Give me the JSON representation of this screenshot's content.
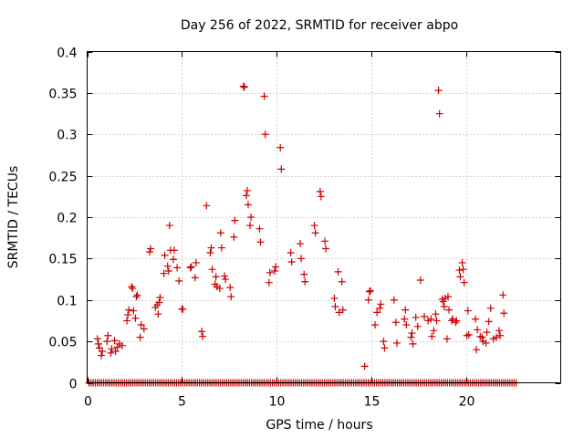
{
  "chart_data": {
    "type": "scatter",
    "title": "Day 256 of 2022, SRMTID for receiver abpo",
    "xlabel": "GPS time / hours",
    "ylabel": "SRMTID / TECUs",
    "xlim": [
      0,
      25
    ],
    "ylim": [
      0,
      0.4
    ],
    "xticks": [
      0,
      5,
      10,
      15,
      20
    ],
    "xtick_labels": [
      "0",
      "5",
      "10",
      "15",
      "20"
    ],
    "yticks": [
      0,
      0.05,
      0.1,
      0.15,
      0.2,
      0.25,
      0.3,
      0.35,
      0.4
    ],
    "ytick_labels": [
      "0",
      "0.05",
      "0.1",
      "0.15",
      "0.2",
      "0.25",
      "0.3",
      "0.35",
      "0.4"
    ],
    "grid": true,
    "marker": "+",
    "color": "#cc0000",
    "zero_series": {
      "x_start": 0.1,
      "x_end": 22.7,
      "x_step": 0.11,
      "y": 0
    },
    "series": [
      {
        "name": "SRMTID",
        "points": [
          [
            0.55,
            0.053
          ],
          [
            0.6,
            0.047
          ],
          [
            0.65,
            0.042
          ],
          [
            0.75,
            0.033
          ],
          [
            0.8,
            0.038
          ],
          [
            1.05,
            0.05
          ],
          [
            1.1,
            0.057
          ],
          [
            1.25,
            0.036
          ],
          [
            1.3,
            0.041
          ],
          [
            1.45,
            0.051
          ],
          [
            1.5,
            0.038
          ],
          [
            1.6,
            0.043
          ],
          [
            1.7,
            0.047
          ],
          [
            1.85,
            0.045
          ],
          [
            2.1,
            0.075
          ],
          [
            2.15,
            0.082
          ],
          [
            2.2,
            0.088
          ],
          [
            2.35,
            0.116
          ],
          [
            2.4,
            0.114
          ],
          [
            2.45,
            0.087
          ],
          [
            2.55,
            0.078
          ],
          [
            2.6,
            0.104
          ],
          [
            2.65,
            0.106
          ],
          [
            2.8,
            0.055
          ],
          [
            2.85,
            0.07
          ],
          [
            3.0,
            0.065
          ],
          [
            3.3,
            0.158
          ],
          [
            3.35,
            0.162
          ],
          [
            3.6,
            0.091
          ],
          [
            3.7,
            0.094
          ],
          [
            3.75,
            0.083
          ],
          [
            3.8,
            0.097
          ],
          [
            3.85,
            0.103
          ],
          [
            4.05,
            0.132
          ],
          [
            4.1,
            0.154
          ],
          [
            4.25,
            0.141
          ],
          [
            4.3,
            0.135
          ],
          [
            4.35,
            0.19
          ],
          [
            4.4,
            0.16
          ],
          [
            4.55,
            0.149
          ],
          [
            4.6,
            0.16
          ],
          [
            4.75,
            0.139
          ],
          [
            4.85,
            0.123
          ],
          [
            5.0,
            0.089
          ],
          [
            5.05,
            0.089
          ],
          [
            5.45,
            0.139
          ],
          [
            5.5,
            0.14
          ],
          [
            5.7,
            0.127
          ],
          [
            5.75,
            0.145
          ],
          [
            6.05,
            0.062
          ],
          [
            6.1,
            0.056
          ],
          [
            6.3,
            0.214
          ],
          [
            6.5,
            0.157
          ],
          [
            6.55,
            0.163
          ],
          [
            6.6,
            0.137
          ],
          [
            6.75,
            0.119
          ],
          [
            6.8,
            0.128
          ],
          [
            6.85,
            0.116
          ],
          [
            7.0,
            0.114
          ],
          [
            7.05,
            0.181
          ],
          [
            7.1,
            0.163
          ],
          [
            7.25,
            0.129
          ],
          [
            7.3,
            0.125
          ],
          [
            7.55,
            0.115
          ],
          [
            7.6,
            0.104
          ],
          [
            7.75,
            0.176
          ],
          [
            7.8,
            0.196
          ],
          [
            8.25,
            0.358
          ],
          [
            8.3,
            0.357
          ],
          [
            8.4,
            0.226
          ],
          [
            8.45,
            0.232
          ],
          [
            8.5,
            0.215
          ],
          [
            8.6,
            0.19
          ],
          [
            8.65,
            0.2
          ],
          [
            9.1,
            0.186
          ],
          [
            9.15,
            0.17
          ],
          [
            9.35,
            0.346
          ],
          [
            9.4,
            0.3
          ],
          [
            9.6,
            0.121
          ],
          [
            9.65,
            0.133
          ],
          [
            9.9,
            0.135
          ],
          [
            9.95,
            0.14
          ],
          [
            10.2,
            0.284
          ],
          [
            10.25,
            0.258
          ],
          [
            10.75,
            0.157
          ],
          [
            10.8,
            0.146
          ],
          [
            11.25,
            0.168
          ],
          [
            11.3,
            0.15
          ],
          [
            11.45,
            0.131
          ],
          [
            11.5,
            0.122
          ],
          [
            12.0,
            0.19
          ],
          [
            12.05,
            0.181
          ],
          [
            12.3,
            0.231
          ],
          [
            12.35,
            0.225
          ],
          [
            12.55,
            0.171
          ],
          [
            12.6,
            0.162
          ],
          [
            13.05,
            0.102
          ],
          [
            13.1,
            0.092
          ],
          [
            13.25,
            0.134
          ],
          [
            13.3,
            0.085
          ],
          [
            13.45,
            0.122
          ],
          [
            13.5,
            0.088
          ],
          [
            14.65,
            0.02
          ],
          [
            14.85,
            0.1
          ],
          [
            14.9,
            0.11
          ],
          [
            14.95,
            0.111
          ],
          [
            15.2,
            0.07
          ],
          [
            15.3,
            0.085
          ],
          [
            15.45,
            0.09
          ],
          [
            15.5,
            0.095
          ],
          [
            15.65,
            0.05
          ],
          [
            15.7,
            0.042
          ],
          [
            16.2,
            0.1
          ],
          [
            16.3,
            0.073
          ],
          [
            16.35,
            0.048
          ],
          [
            16.75,
            0.077
          ],
          [
            16.8,
            0.088
          ],
          [
            16.85,
            0.07
          ],
          [
            17.1,
            0.055
          ],
          [
            17.15,
            0.06
          ],
          [
            17.2,
            0.047
          ],
          [
            17.35,
            0.079
          ],
          [
            17.45,
            0.068
          ],
          [
            17.6,
            0.124
          ],
          [
            17.8,
            0.08
          ],
          [
            18.0,
            0.075
          ],
          [
            18.15,
            0.077
          ],
          [
            18.2,
            0.056
          ],
          [
            18.3,
            0.063
          ],
          [
            18.4,
            0.083
          ],
          [
            18.45,
            0.075
          ],
          [
            18.55,
            0.353
          ],
          [
            18.6,
            0.325
          ],
          [
            18.75,
            0.101
          ],
          [
            18.8,
            0.098
          ],
          [
            18.85,
            0.092
          ],
          [
            18.9,
            0.102
          ],
          [
            19.0,
            0.053
          ],
          [
            19.05,
            0.104
          ],
          [
            19.1,
            0.088
          ],
          [
            19.25,
            0.075
          ],
          [
            19.3,
            0.077
          ],
          [
            19.45,
            0.073
          ],
          [
            19.5,
            0.075
          ],
          [
            19.65,
            0.136
          ],
          [
            19.7,
            0.128
          ],
          [
            19.8,
            0.145
          ],
          [
            19.85,
            0.137
          ],
          [
            19.9,
            0.121
          ],
          [
            20.05,
            0.057
          ],
          [
            20.1,
            0.087
          ],
          [
            20.15,
            0.058
          ],
          [
            20.5,
            0.077
          ],
          [
            20.55,
            0.04
          ],
          [
            20.6,
            0.064
          ],
          [
            20.75,
            0.056
          ],
          [
            20.85,
            0.055
          ],
          [
            20.9,
            0.05
          ],
          [
            21.05,
            0.048
          ],
          [
            21.1,
            0.061
          ],
          [
            21.2,
            0.074
          ],
          [
            21.3,
            0.09
          ],
          [
            21.45,
            0.053
          ],
          [
            21.6,
            0.055
          ],
          [
            21.75,
            0.063
          ],
          [
            21.8,
            0.057
          ],
          [
            21.95,
            0.106
          ],
          [
            22.0,
            0.084
          ]
        ]
      }
    ]
  }
}
